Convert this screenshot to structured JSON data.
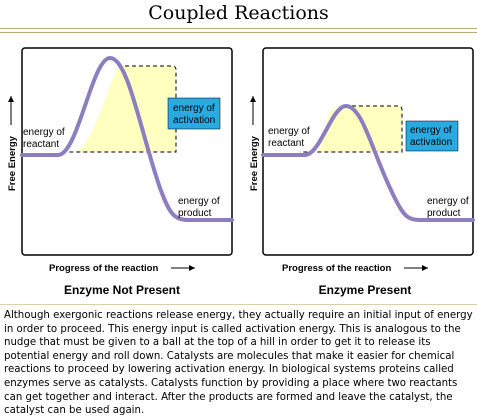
{
  "title": "Coupled Reactions",
  "axis": {
    "y_label": "Free Energy",
    "x_label": "Progress of the reaction"
  },
  "panels": [
    {
      "caption": "Enzyme Not Present",
      "reactant_label": [
        "energy of",
        "reactant"
      ],
      "product_label": [
        "energy of",
        "product"
      ],
      "activation_label": [
        "energy of",
        "activation"
      ]
    },
    {
      "caption": "Enzyme Present",
      "reactant_label": [
        "energy of",
        "reactant"
      ],
      "product_label": [
        "energy of",
        "product"
      ],
      "activation_label": [
        "energy of",
        "activation"
      ]
    }
  ],
  "colors": {
    "curve": "#8b7fbf",
    "activation_fill": "#ffffbf",
    "activation_box": "#29abe2",
    "rule": "#b9a878"
  },
  "description": "Although exergonic reactions release energy, they actually require an initial input of energy in order to proceed.  This energy input is called activation energy.  This is analogous to the nudge that must be given to a ball at the top of a hill in order to get it to release its potential energy and roll down.  Catalysts are molecules that make it easier for chemical reactions to proceed by lowering activation energy.  In biological systems proteins called enzymes serve as catalysts.  Catalysts function by providing a place where two reactants can get together and interact.  After the products are formed and leave the catalyst, the catalyst can be used again."
}
